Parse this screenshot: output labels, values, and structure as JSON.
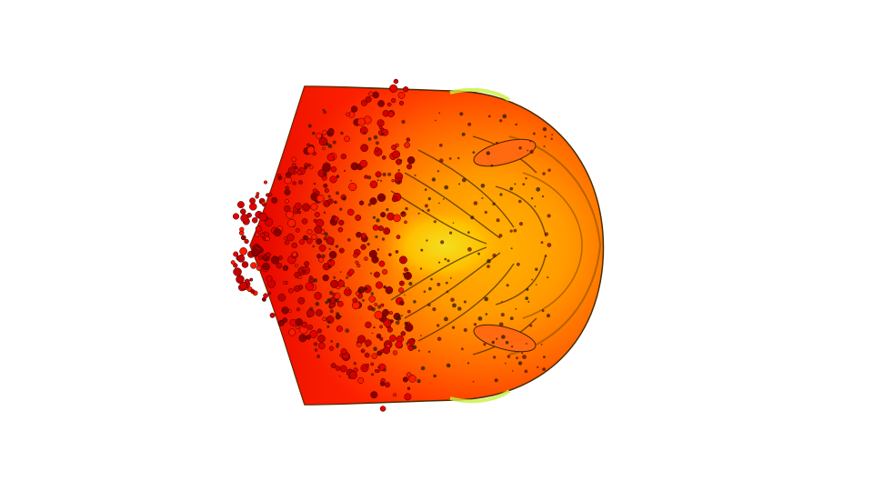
{
  "viewport": {
    "background": "#ffffff"
  },
  "render": {
    "subject": "particle-cloud",
    "colormap": [
      "#d40000",
      "#ff1a00",
      "#ff5a00",
      "#ff8c00",
      "#ffb000",
      "#f2d21a",
      "#e6f03a"
    ],
    "outline_color": "#2a1a00",
    "edge_highlight": "#c8f040"
  }
}
